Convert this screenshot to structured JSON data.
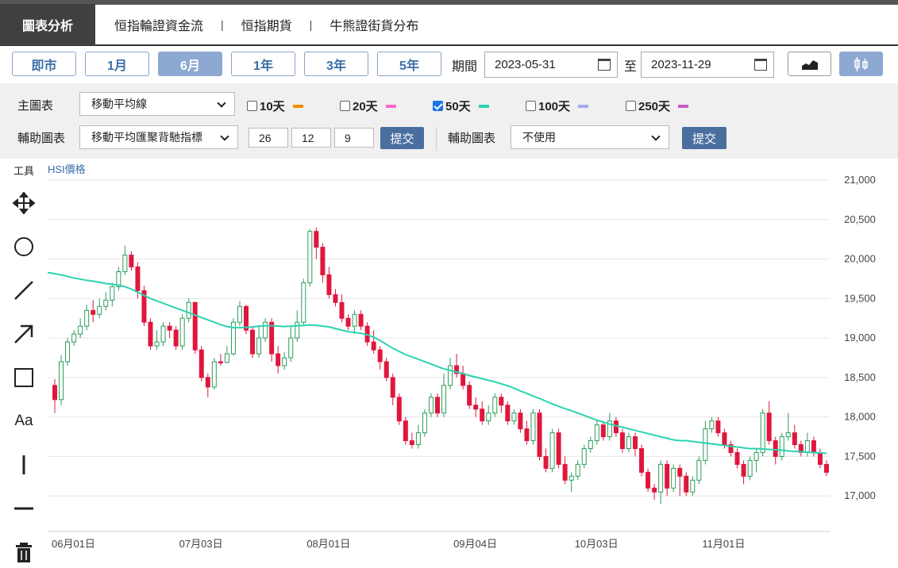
{
  "nav": {
    "active_tab": "圖表分析",
    "tabs": [
      "恒指輪證資金流",
      "恒指期貨",
      "牛熊證街貨分布"
    ],
    "separator": "|"
  },
  "range": {
    "buttons": [
      "即市",
      "1月",
      "6月",
      "1年",
      "3年",
      "5年"
    ],
    "active": "6月",
    "period_label": "期間",
    "start_date": "2023-05-31",
    "to_label": "至",
    "end_date": "2023-11-29",
    "chart_type_icons": [
      "area-chart-icon",
      "candlestick-icon"
    ]
  },
  "controls": {
    "main_chart_label": "主圖表",
    "main_chart_value": "移動平均線",
    "ma_options": [
      {
        "label": "10天",
        "checked": false,
        "color": "#f28c00"
      },
      {
        "label": "20天",
        "checked": false,
        "color": "#ff66cc"
      },
      {
        "label": "50天",
        "checked": true,
        "color": "#2ad4b0"
      },
      {
        "label": "100天",
        "checked": false,
        "color": "#a8a8f0"
      },
      {
        "label": "250天",
        "checked": false,
        "color": "#c060c0"
      }
    ],
    "aux_chart_label": "輔助圖表",
    "aux_chart_value": "移動平均匯聚背馳指標",
    "macd_params": [
      "26",
      "12",
      "9"
    ],
    "submit_label": "提交",
    "aux_chart2_label": "輔助圖表",
    "aux_chart2_value": "不使用",
    "submit2_label": "提交"
  },
  "tools": {
    "title": "工具",
    "items": [
      "move-icon",
      "circle-icon",
      "line-icon",
      "arrow-icon",
      "rectangle-icon",
      "text-icon",
      "vertical-line-icon",
      "horizontal-line-icon",
      "trash-icon"
    ],
    "text_tool_label": "Aa"
  },
  "chart_data": {
    "type": "candlestick",
    "series_label": "HSI價格",
    "ylim": [
      16550,
      21000
    ],
    "yticks": [
      "21,000",
      "20,500",
      "20,000",
      "19,500",
      "19,000",
      "18,500",
      "18,000",
      "17,500",
      "17,000"
    ],
    "ytick_values": [
      21000,
      20500,
      20000,
      19500,
      19000,
      18500,
      18000,
      17500,
      17000
    ],
    "xticks": [
      {
        "label": "06月01日",
        "index": 0
      },
      {
        "label": "07月03日",
        "index": 20
      },
      {
        "label": "08月01日",
        "index": 40
      },
      {
        "label": "09月04日",
        "index": 63
      },
      {
        "label": "10月03日",
        "index": 82
      },
      {
        "label": "11月01日",
        "index": 102
      }
    ],
    "up_color": "#2a9d5c",
    "down_color": "#e0163c",
    "ma_color": "#2ad4b0",
    "candles": [
      [
        18400,
        18220,
        18480,
        18050
      ],
      [
        18220,
        18700,
        18780,
        18150
      ],
      [
        18700,
        18950,
        19000,
        18650
      ],
      [
        18950,
        19050,
        19100,
        18900
      ],
      [
        19050,
        19150,
        19250,
        19000
      ],
      [
        19150,
        19350,
        19420,
        19100
      ],
      [
        19350,
        19300,
        19480,
        19200
      ],
      [
        19300,
        19400,
        19500,
        19250
      ],
      [
        19400,
        19480,
        19580,
        19350
      ],
      [
        19480,
        19650,
        19700,
        19400
      ],
      [
        19650,
        19840,
        19900,
        19600
      ],
      [
        19840,
        20050,
        20170,
        19800
      ],
      [
        20050,
        19900,
        20100,
        19850
      ],
      [
        19900,
        19600,
        19960,
        19500
      ],
      [
        19600,
        19200,
        19660,
        19150
      ],
      [
        19200,
        18900,
        19250,
        18850
      ],
      [
        18900,
        18950,
        19100,
        18850
      ],
      [
        18950,
        19150,
        19200,
        18900
      ],
      [
        19150,
        19100,
        19200,
        19000
      ],
      [
        19100,
        18900,
        19150,
        18850
      ],
      [
        18900,
        19250,
        19300,
        18850
      ],
      [
        19250,
        19450,
        19500,
        19200
      ],
      [
        19450,
        18850,
        19460,
        18800
      ],
      [
        18850,
        18500,
        18900,
        18450
      ],
      [
        18500,
        18380,
        18550,
        18250
      ],
      [
        18380,
        18700,
        18750,
        18350
      ],
      [
        18700,
        18690,
        18800,
        18650
      ],
      [
        18690,
        18800,
        18900,
        18680
      ],
      [
        18800,
        19200,
        19250,
        18780
      ],
      [
        19200,
        19400,
        19470,
        19150
      ],
      [
        19400,
        19100,
        19420,
        19050
      ],
      [
        19100,
        18800,
        19150,
        18750
      ],
      [
        18800,
        19000,
        19150,
        18750
      ],
      [
        19000,
        19200,
        19250,
        18950
      ],
      [
        19200,
        18800,
        19250,
        18700
      ],
      [
        18800,
        18650,
        18900,
        18550
      ],
      [
        18650,
        18750,
        18820,
        18600
      ],
      [
        18750,
        19000,
        19150,
        18700
      ],
      [
        19000,
        19200,
        19350,
        18950
      ],
      [
        19200,
        19700,
        19750,
        19150
      ],
      [
        19700,
        20350,
        20380,
        19650
      ],
      [
        20350,
        20150,
        20400,
        20000
      ],
      [
        20150,
        19800,
        20200,
        19700
      ],
      [
        19800,
        19550,
        19900,
        19500
      ],
      [
        19550,
        19450,
        19620,
        19400
      ],
      [
        19450,
        19250,
        19550,
        19200
      ],
      [
        19250,
        19150,
        19300,
        19100
      ],
      [
        19150,
        19300,
        19350,
        19050
      ],
      [
        19300,
        19150,
        19350,
        19100
      ],
      [
        19150,
        18950,
        19200,
        18900
      ],
      [
        18950,
        18850,
        19100,
        18800
      ],
      [
        18850,
        18700,
        18900,
        18600
      ],
      [
        18700,
        18500,
        18750,
        18450
      ],
      [
        18500,
        18250,
        18550,
        18150
      ],
      [
        18250,
        17950,
        18300,
        17900
      ],
      [
        17950,
        17700,
        18000,
        17650
      ],
      [
        17700,
        17650,
        17800,
        17600
      ],
      [
        17650,
        17800,
        17900,
        17600
      ],
      [
        17800,
        18050,
        18100,
        17750
      ],
      [
        18050,
        18250,
        18300,
        18000
      ],
      [
        18250,
        18050,
        18300,
        18000
      ],
      [
        18050,
        18400,
        18550,
        18000
      ],
      [
        18400,
        18650,
        18750,
        18350
      ],
      [
        18650,
        18550,
        18800,
        18500
      ],
      [
        18550,
        18400,
        18650,
        18350
      ],
      [
        18400,
        18150,
        18450,
        18100
      ],
      [
        18150,
        18100,
        18250,
        18000
      ],
      [
        18100,
        17950,
        18200,
        17900
      ],
      [
        17950,
        18050,
        18150,
        17900
      ],
      [
        18050,
        18250,
        18300,
        18000
      ],
      [
        18250,
        18150,
        18300,
        18050
      ],
      [
        18150,
        17950,
        18200,
        17900
      ],
      [
        17950,
        18050,
        18100,
        17900
      ],
      [
        18050,
        17850,
        18100,
        17800
      ],
      [
        17850,
        17700,
        17950,
        17650
      ],
      [
        17700,
        18050,
        18100,
        17650
      ],
      [
        18050,
        17500,
        18100,
        17450
      ],
      [
        17500,
        17350,
        17600,
        17300
      ],
      [
        17350,
        17800,
        17850,
        17300
      ],
      [
        17800,
        17400,
        17850,
        17350
      ],
      [
        17400,
        17200,
        17500,
        17150
      ],
      [
        17200,
        17250,
        17300,
        17050
      ],
      [
        17250,
        17400,
        17450,
        17200
      ],
      [
        17400,
        17600,
        17650,
        17350
      ],
      [
        17600,
        17700,
        17750,
        17550
      ],
      [
        17700,
        17900,
        17950,
        17650
      ],
      [
        17900,
        17750,
        17950,
        17700
      ],
      [
        17750,
        17950,
        18050,
        17700
      ],
      [
        17950,
        17800,
        18000,
        17750
      ],
      [
        17800,
        17600,
        17850,
        17550
      ],
      [
        17600,
        17750,
        17800,
        17550
      ],
      [
        17750,
        17600,
        17800,
        17500
      ],
      [
        17600,
        17300,
        17650,
        17250
      ],
      [
        17300,
        17100,
        17350,
        17050
      ],
      [
        17100,
        17050,
        17150,
        16950
      ],
      [
        17050,
        17400,
        17450,
        16900
      ],
      [
        17400,
        17100,
        17450,
        17000
      ],
      [
        17100,
        17350,
        17400,
        17050
      ],
      [
        17350,
        17250,
        17400,
        17000
      ],
      [
        17250,
        17050,
        17300,
        17000
      ],
      [
        17050,
        17200,
        17250,
        17000
      ],
      [
        17200,
        17450,
        17500,
        17150
      ],
      [
        17450,
        17850,
        17950,
        17400
      ],
      [
        17850,
        17950,
        18000,
        17800
      ],
      [
        17950,
        17800,
        18000,
        17750
      ],
      [
        17800,
        17650,
        17850,
        17600
      ],
      [
        17650,
        17550,
        17700,
        17500
      ],
      [
        17550,
        17400,
        17600,
        17350
      ],
      [
        17400,
        17250,
        17450,
        17150
      ],
      [
        17250,
        17450,
        17500,
        17200
      ],
      [
        17450,
        17550,
        17600,
        17300
      ],
      [
        17550,
        18050,
        18100,
        17500
      ],
      [
        18050,
        17700,
        18200,
        17650
      ],
      [
        17700,
        17500,
        17750,
        17400
      ],
      [
        17500,
        17750,
        17800,
        17450
      ],
      [
        17750,
        17800,
        18050,
        17700
      ],
      [
        17800,
        17650,
        17900,
        17600
      ],
      [
        17650,
        17550,
        17700,
        17500
      ],
      [
        17550,
        17700,
        17800,
        17500
      ],
      [
        17700,
        17550,
        17750,
        17500
      ],
      [
        17550,
        17400,
        17600,
        17350
      ],
      [
        17400,
        17300,
        17450,
        17250
      ]
    ],
    "ma50": [
      19830,
      19800,
      19780,
      19760,
      19745,
      19730,
      19720,
      19705,
      19690,
      19680,
      19670,
      19650,
      19620,
      19580,
      19540,
      19500,
      19470,
      19440,
      19410,
      19380,
      19350,
      19320,
      19290,
      19260,
      19230,
      19200,
      19170,
      19145,
      19130,
      19130,
      19135,
      19140,
      19150,
      19155,
      19155,
      19150,
      19145,
      19150,
      19155,
      19160,
      19165,
      19160,
      19150,
      19140,
      19120,
      19100,
      19080,
      19070,
      19060,
      19040,
      19010,
      18970,
      18920,
      18870,
      18830,
      18790,
      18760,
      18730,
      18700,
      18670,
      18640,
      18610,
      18590,
      18570,
      18550,
      18525,
      18505,
      18485,
      18465,
      18445,
      18420,
      18395,
      18365,
      18330,
      18300,
      18265,
      18235,
      18200,
      18165,
      18135,
      18105,
      18080,
      18050,
      18020,
      17990,
      17960,
      17935,
      17910,
      17890,
      17870,
      17850,
      17830,
      17810,
      17790,
      17770,
      17750,
      17730,
      17710,
      17700,
      17700,
      17690,
      17680,
      17670,
      17660,
      17650,
      17640,
      17630,
      17620,
      17610,
      17600,
      17600,
      17595,
      17590,
      17585,
      17580,
      17570,
      17565,
      17560,
      17555,
      17550,
      17545,
      17540
    ]
  }
}
